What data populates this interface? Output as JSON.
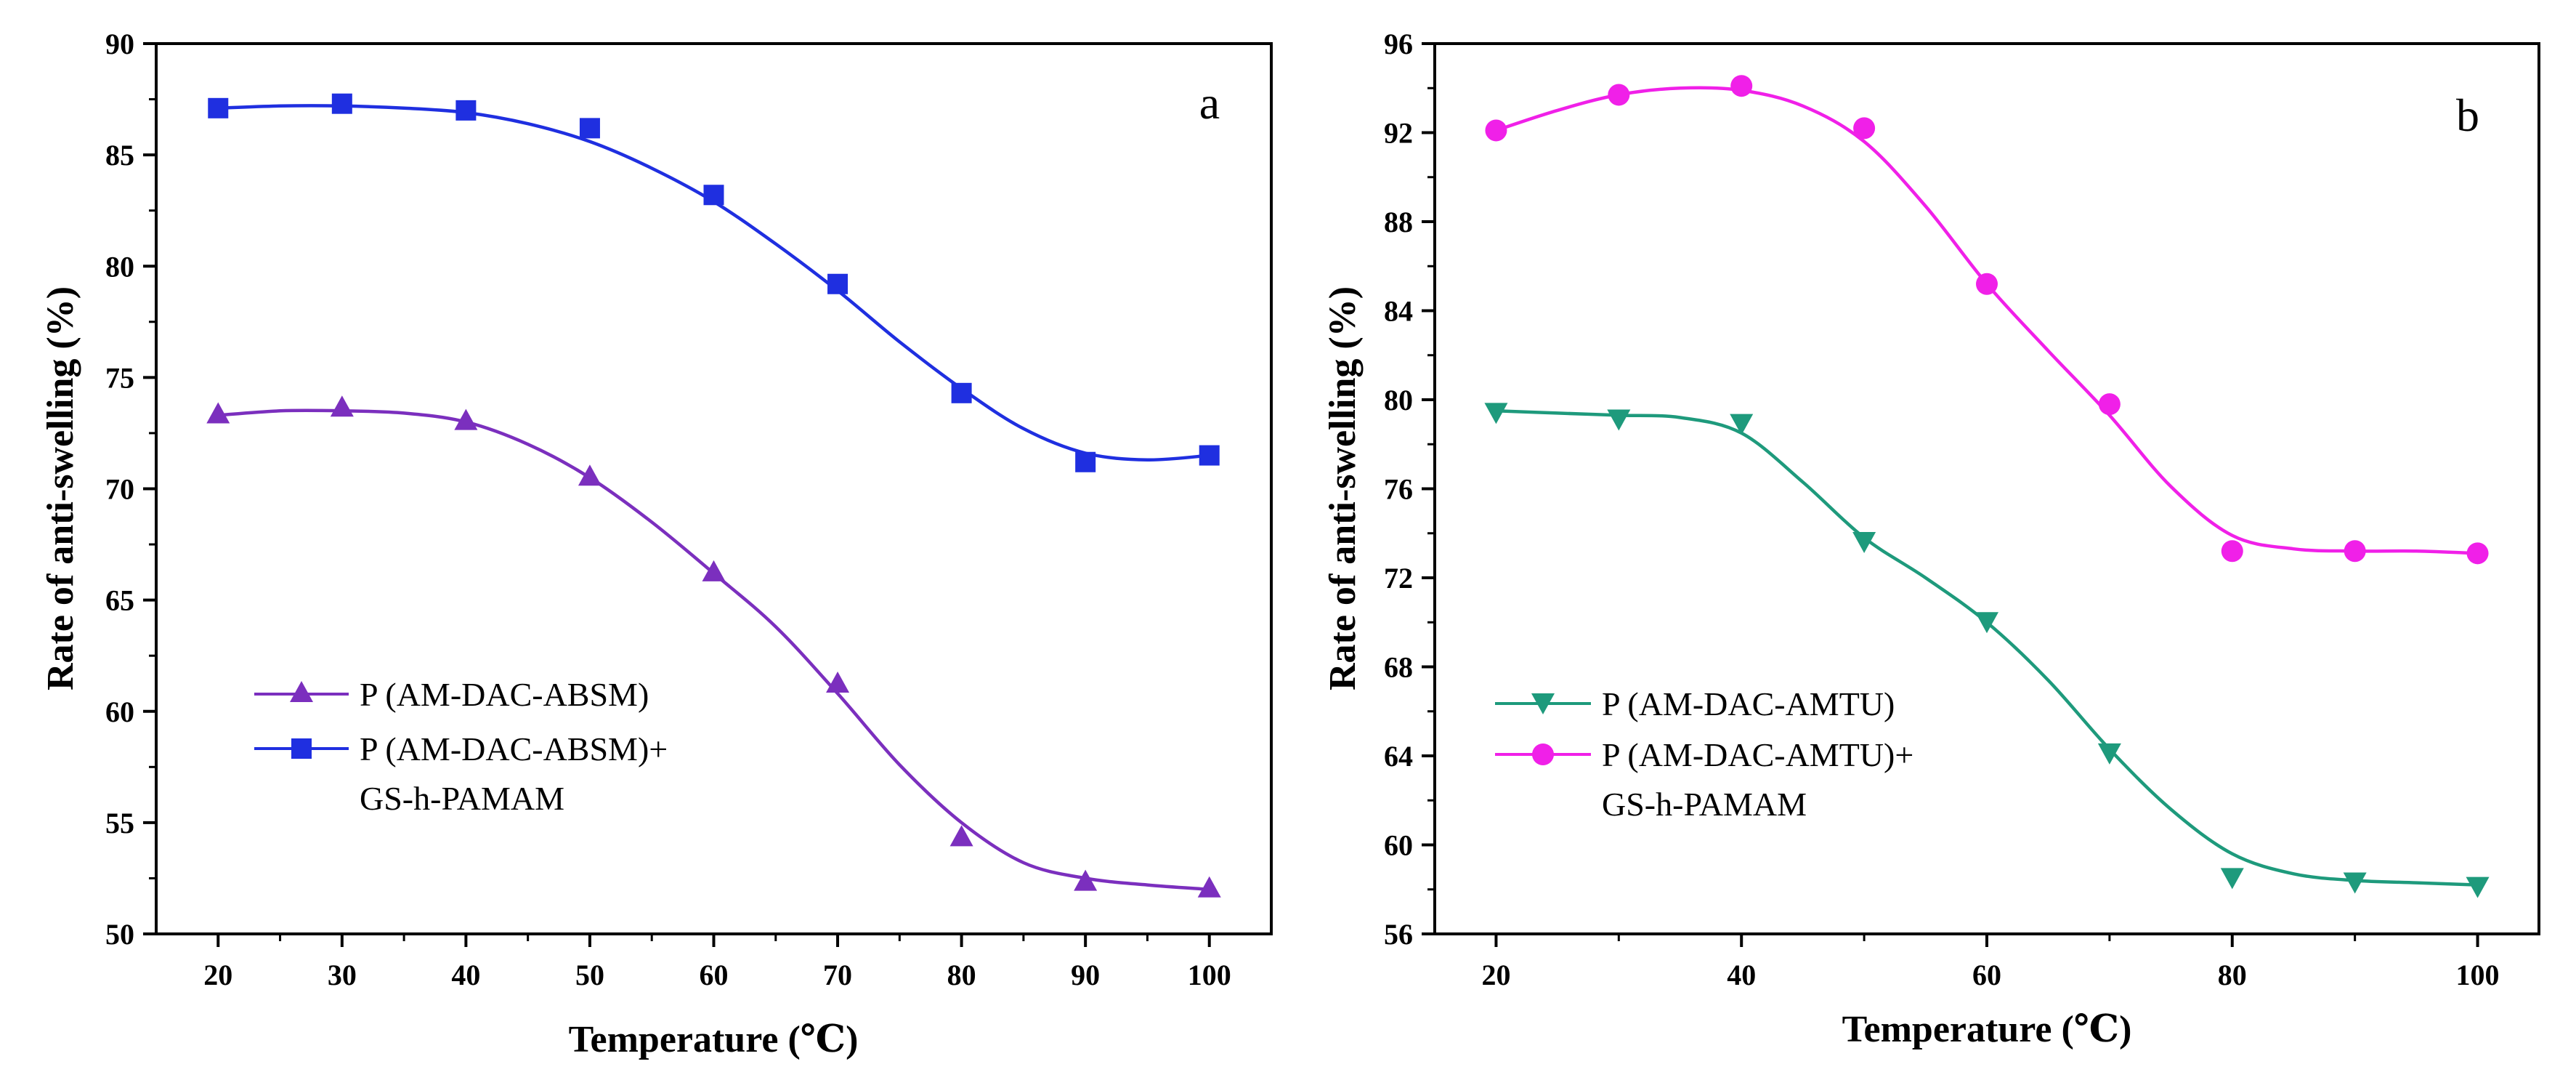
{
  "chart_data": [
    {
      "type": "line",
      "panel_label": "a",
      "xlabel": "Temperature (℃)",
      "ylabel": "Rate of anti-swelling (%)",
      "xlim": [
        15,
        105
      ],
      "ylim": [
        50,
        90
      ],
      "x_ticks": [
        20,
        30,
        40,
        50,
        60,
        70,
        80,
        90,
        100
      ],
      "y_ticks": [
        50,
        55,
        60,
        65,
        70,
        75,
        80,
        85,
        90
      ],
      "legend_position": "lower-left",
      "series": [
        {
          "name": "P (AM-DAC-ABSM)",
          "name_line2": "",
          "color": "#7B2FBE",
          "marker": "triangle-up",
          "x": [
            20,
            30,
            40,
            50,
            60,
            70,
            80,
            90,
            100
          ],
          "y": [
            73.3,
            73.6,
            73.0,
            70.5,
            66.2,
            61.2,
            54.3,
            52.3,
            52.0
          ],
          "fit": [
            [
              20,
              73.3
            ],
            [
              25,
              73.5
            ],
            [
              30,
              73.5
            ],
            [
              35,
              73.4
            ],
            [
              40,
              73.0
            ],
            [
              45,
              72.0
            ],
            [
              50,
              70.5
            ],
            [
              55,
              68.5
            ],
            [
              60,
              66.2
            ],
            [
              65,
              63.8
            ],
            [
              70,
              60.8
            ],
            [
              75,
              57.6
            ],
            [
              80,
              55.0
            ],
            [
              85,
              53.2
            ],
            [
              90,
              52.5
            ],
            [
              95,
              52.2
            ],
            [
              100,
              52.0
            ]
          ]
        },
        {
          "name": "P (AM-DAC-ABSM)+",
          "name_line2": "GS-h-PAMAM",
          "color": "#1F2FE0",
          "marker": "square",
          "x": [
            20,
            30,
            40,
            50,
            60,
            70,
            80,
            90,
            100
          ],
          "y": [
            87.1,
            87.3,
            87.0,
            86.2,
            83.2,
            79.2,
            74.3,
            71.2,
            71.5
          ],
          "fit": [
            [
              20,
              87.1
            ],
            [
              25,
              87.2
            ],
            [
              30,
              87.2
            ],
            [
              35,
              87.1
            ],
            [
              40,
              86.9
            ],
            [
              45,
              86.4
            ],
            [
              50,
              85.6
            ],
            [
              55,
              84.4
            ],
            [
              60,
              82.9
            ],
            [
              65,
              81.0
            ],
            [
              70,
              78.9
            ],
            [
              75,
              76.6
            ],
            [
              80,
              74.5
            ],
            [
              85,
              72.7
            ],
            [
              90,
              71.6
            ],
            [
              95,
              71.3
            ],
            [
              100,
              71.5
            ]
          ]
        }
      ]
    },
    {
      "type": "line",
      "panel_label": "b",
      "xlabel": "Temperature (℃)",
      "ylabel": "Rate of anti-swelling (%)",
      "xlim": [
        15,
        105
      ],
      "ylim": [
        56,
        96
      ],
      "x_ticks": [
        20,
        40,
        60,
        80,
        100
      ],
      "y_ticks": [
        56,
        60,
        64,
        68,
        72,
        76,
        80,
        84,
        88,
        92,
        96
      ],
      "legend_position": "lower-left",
      "series": [
        {
          "name": "P (AM-DAC-AMTU)",
          "name_line2": "",
          "color": "#1E9A7C",
          "marker": "triangle-down",
          "x": [
            20,
            30,
            40,
            50,
            60,
            70,
            80,
            90,
            100
          ],
          "y": [
            79.5,
            79.2,
            79.0,
            73.7,
            70.1,
            64.2,
            58.6,
            58.4,
            58.2
          ],
          "fit": [
            [
              20,
              79.5
            ],
            [
              25,
              79.4
            ],
            [
              30,
              79.3
            ],
            [
              35,
              79.2
            ],
            [
              40,
              78.5
            ],
            [
              45,
              76.3
            ],
            [
              50,
              73.8
            ],
            [
              55,
              72.0
            ],
            [
              60,
              70.0
            ],
            [
              65,
              67.4
            ],
            [
              70,
              64.3
            ],
            [
              75,
              61.6
            ],
            [
              80,
              59.6
            ],
            [
              85,
              58.7
            ],
            [
              90,
              58.4
            ],
            [
              95,
              58.3
            ],
            [
              100,
              58.2
            ]
          ]
        },
        {
          "name": "P (AM-DAC-AMTU)+",
          "name_line2": "GS-h-PAMAM",
          "color": "#F020E8",
          "marker": "circle",
          "x": [
            20,
            30,
            40,
            50,
            60,
            70,
            80,
            90,
            100
          ],
          "y": [
            92.1,
            93.7,
            94.1,
            92.2,
            85.2,
            79.8,
            73.2,
            73.2,
            73.1
          ],
          "fit": [
            [
              20,
              92.1
            ],
            [
              25,
              93.0
            ],
            [
              30,
              93.7
            ],
            [
              35,
              94.0
            ],
            [
              40,
              93.9
            ],
            [
              45,
              93.2
            ],
            [
              50,
              91.6
            ],
            [
              55,
              88.7
            ],
            [
              60,
              85.2
            ],
            [
              65,
              82.2
            ],
            [
              70,
              79.3
            ],
            [
              75,
              76.1
            ],
            [
              80,
              73.9
            ],
            [
              85,
              73.3
            ],
            [
              90,
              73.2
            ],
            [
              95,
              73.2
            ],
            [
              100,
              73.1
            ]
          ]
        }
      ]
    }
  ]
}
